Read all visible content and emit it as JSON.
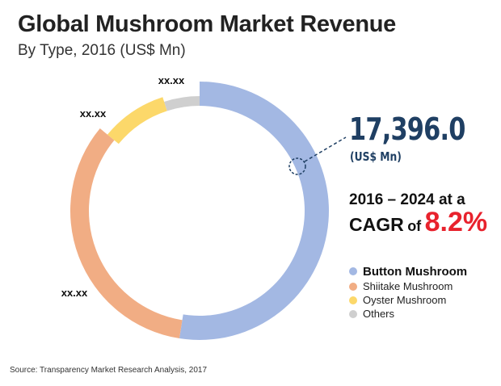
{
  "chart_data": {
    "type": "pie",
    "title": "Global Mushroom Market Revenue",
    "subtitle": "By Type, 2016 (US$ Mn)",
    "slices": [
      {
        "name": "Button Mushroom",
        "share": 0.525,
        "label": "",
        "color": "#a3b8e3"
      },
      {
        "name": "Shiitake Mushroom",
        "share": 0.335,
        "label": "xx.xx",
        "color": "#f1ad84"
      },
      {
        "name": "Oyster Mushroom",
        "share": 0.09,
        "label": "xx.xx",
        "color": "#fcd86a"
      },
      {
        "name": "Others",
        "share": 0.05,
        "label": "xx.xx",
        "color": "#cfcfcf"
      }
    ],
    "legend_position": "right"
  },
  "highlight": {
    "value": "17,396.0",
    "unit": "(US$ Mn)",
    "cagr_prefix": "2016 – 2024 at a",
    "cagr_word1": "CAGR",
    "cagr_word2": "of",
    "cagr_value": "8.2%",
    "accent_color": "#e8222d",
    "value_color": "#1f3f63"
  },
  "source": "Source: Transparency Market Research Analysis, 2017"
}
